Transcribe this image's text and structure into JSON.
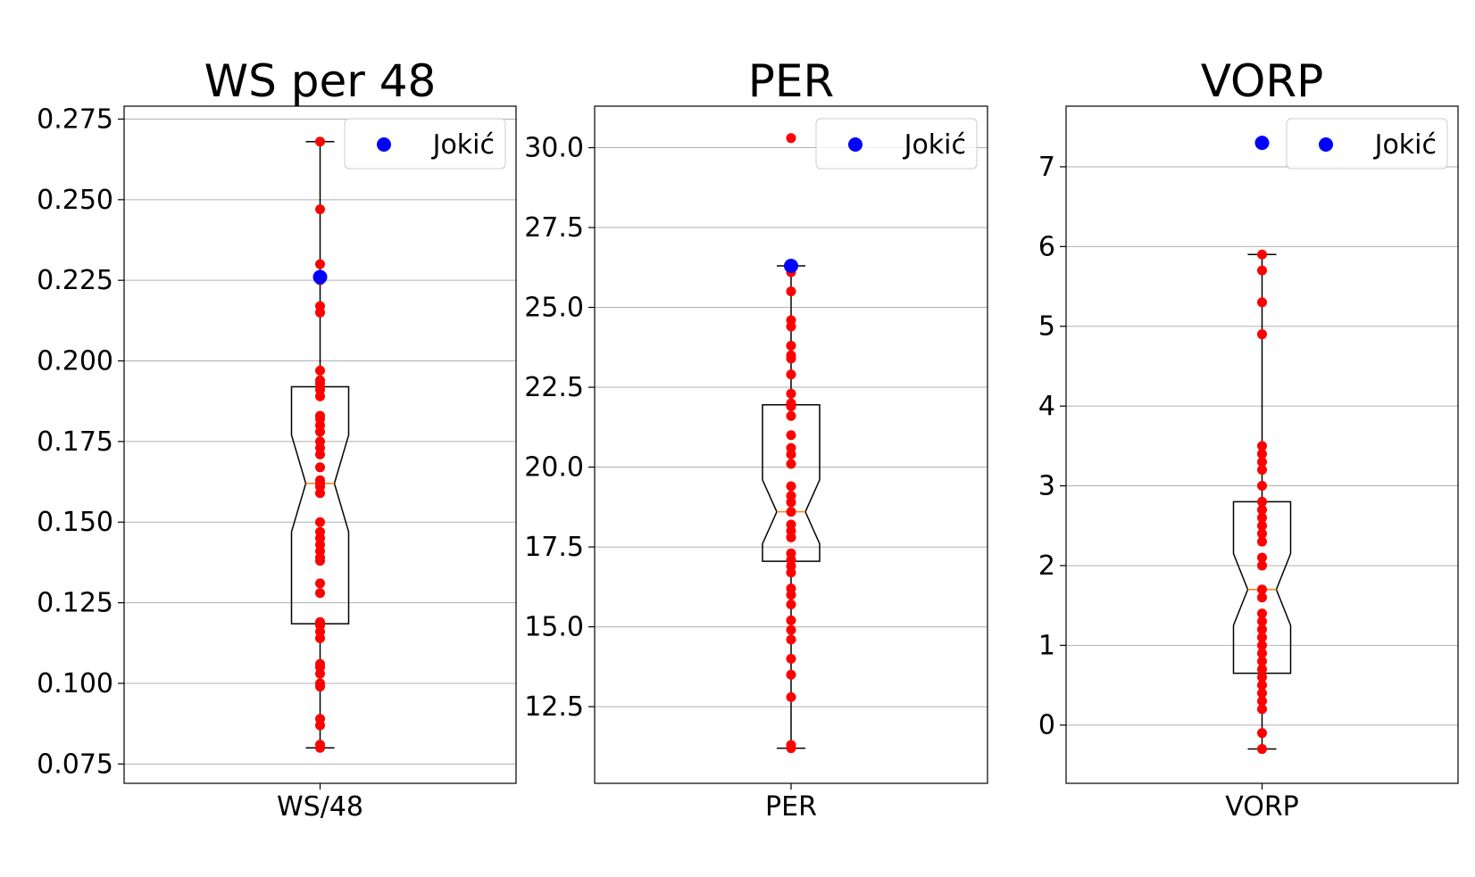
{
  "colors": {
    "points": "#ff0000",
    "highlight": "#0000ff",
    "median": "#ff7f0e",
    "grid": "#b0b0b0",
    "box": "#000000"
  },
  "chart_data": [
    {
      "type": "box",
      "title": "WS per 48",
      "category": "WS/48",
      "ylim": [
        0.069,
        0.279
      ],
      "yticks": [
        0.075,
        0.1,
        0.125,
        0.15,
        0.175,
        0.2,
        0.225,
        0.25,
        0.275
      ],
      "ytick_labels": [
        "0.075",
        "0.100",
        "0.125",
        "0.150",
        "0.175",
        "0.200",
        "0.225",
        "0.250",
        "0.275"
      ],
      "grid": "horizontal",
      "legend": {
        "label": "Jokić",
        "position": "top-right"
      },
      "box": {
        "q1": 0.1185,
        "median": 0.162,
        "q3": 0.192,
        "notch_low": 0.147,
        "notch_high": 0.177,
        "whisker_low": 0.08,
        "whisker_high": 0.268
      },
      "points": [
        0.08,
        0.081,
        0.087,
        0.089,
        0.099,
        0.1,
        0.103,
        0.105,
        0.106,
        0.114,
        0.116,
        0.118,
        0.119,
        0.128,
        0.131,
        0.138,
        0.139,
        0.141,
        0.143,
        0.145,
        0.147,
        0.15,
        0.159,
        0.161,
        0.162,
        0.163,
        0.167,
        0.171,
        0.173,
        0.175,
        0.178,
        0.18,
        0.182,
        0.183,
        0.189,
        0.191,
        0.193,
        0.194,
        0.197,
        0.215,
        0.217,
        0.225,
        0.23,
        0.247,
        0.268
      ],
      "highlight": 0.226
    },
    {
      "type": "box",
      "title": "PER",
      "category": "PER",
      "ylim": [
        10.1,
        31.3
      ],
      "yticks": [
        12.5,
        15.0,
        17.5,
        20.0,
        22.5,
        25.0,
        27.5,
        30.0
      ],
      "ytick_labels": [
        "12.5",
        "15.0",
        "17.5",
        "20.0",
        "22.5",
        "25.0",
        "27.5",
        "30.0"
      ],
      "grid": "horizontal",
      "legend": {
        "label": "Jokić",
        "position": "top-right"
      },
      "box": {
        "q1": 17.05,
        "median": 18.6,
        "q3": 21.95,
        "notch_low": 17.6,
        "notch_high": 19.6,
        "whisker_low": 11.2,
        "whisker_high": 26.3
      },
      "points": [
        11.2,
        11.3,
        12.8,
        13.5,
        14.0,
        14.6,
        14.9,
        15.2,
        15.7,
        16.0,
        16.2,
        16.7,
        16.9,
        17.1,
        17.3,
        17.8,
        18.0,
        18.2,
        18.6,
        18.9,
        19.1,
        19.4,
        20.1,
        20.4,
        20.6,
        21.0,
        21.6,
        21.9,
        22.0,
        22.3,
        22.9,
        23.4,
        23.5,
        23.8,
        24.4,
        24.6,
        25.5,
        26.1,
        26.2,
        30.3
      ],
      "highlight": 26.3
    },
    {
      "type": "box",
      "title": "VORP",
      "category": "VORP",
      "ylim": [
        -0.73,
        7.76
      ],
      "yticks": [
        0,
        1,
        2,
        3,
        4,
        5,
        6,
        7
      ],
      "ytick_labels": [
        "0",
        "1",
        "2",
        "3",
        "4",
        "5",
        "6",
        "7"
      ],
      "grid": "horizontal",
      "legend": {
        "label": "Jokić",
        "position": "top-right"
      },
      "box": {
        "q1": 0.65,
        "median": 1.7,
        "q3": 2.8,
        "notch_low": 1.25,
        "notch_high": 2.15,
        "whisker_low": -0.3,
        "whisker_high": 5.9
      },
      "points": [
        -0.3,
        -0.1,
        0.2,
        0.3,
        0.4,
        0.5,
        0.6,
        0.7,
        0.8,
        0.9,
        1.0,
        1.1,
        1.2,
        1.3,
        1.4,
        1.6,
        1.7,
        2.0,
        2.1,
        2.3,
        2.4,
        2.5,
        2.6,
        2.7,
        2.8,
        3.0,
        3.2,
        3.3,
        3.4,
        3.5,
        4.9,
        5.3,
        5.7,
        5.9
      ],
      "highlight": 7.3
    }
  ]
}
